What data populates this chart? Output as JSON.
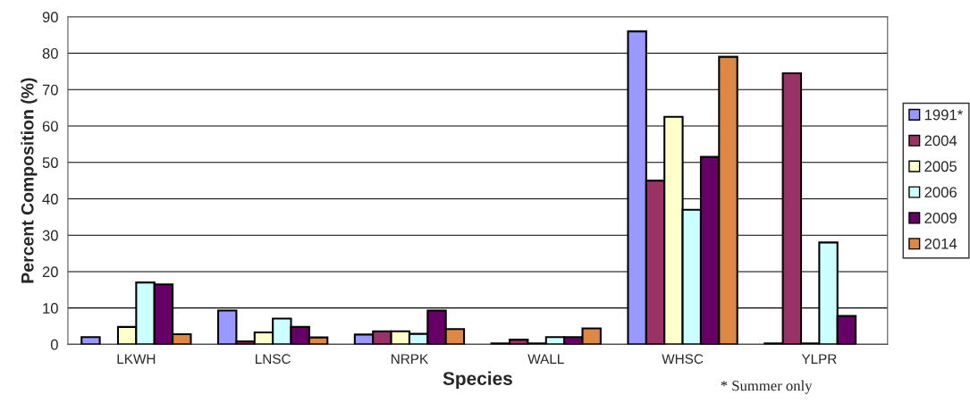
{
  "chart_data": {
    "type": "bar",
    "xlabel": "Species",
    "ylabel": "Percent Composition (%)",
    "categories": [
      "LKWH",
      "LNSC",
      "NRPK",
      "WALL",
      "WHSC",
      "YLPR"
    ],
    "series": [
      {
        "name": "1991*",
        "color": "#9999ff",
        "values": [
          2.0,
          9.3,
          2.7,
          0.3,
          86,
          0.3
        ]
      },
      {
        "name": "2004",
        "color": "#993366",
        "values": [
          null,
          0.8,
          3.6,
          1.3,
          45,
          74.5
        ]
      },
      {
        "name": "2005",
        "color": "#ffffcc",
        "values": [
          4.8,
          3.3,
          3.6,
          0.3,
          62.5,
          0.3
        ]
      },
      {
        "name": "2006",
        "color": "#ccffff",
        "values": [
          17,
          7.1,
          2.9,
          2.0,
          37,
          28
        ]
      },
      {
        "name": "2009",
        "color": "#660066",
        "values": [
          16.5,
          4.8,
          9.3,
          2.0,
          51.5,
          7.8
        ]
      },
      {
        "name": "2014",
        "color": "#dd8844",
        "values": [
          2.8,
          1.9,
          4.2,
          4.4,
          79,
          null
        ]
      }
    ],
    "ylim": [
      0,
      90
    ],
    "yticks": [
      0,
      10,
      20,
      30,
      40,
      50,
      60,
      70,
      80,
      90
    ],
    "grid": "y",
    "legend": "right",
    "annotations": [
      "* Summer only"
    ]
  }
}
